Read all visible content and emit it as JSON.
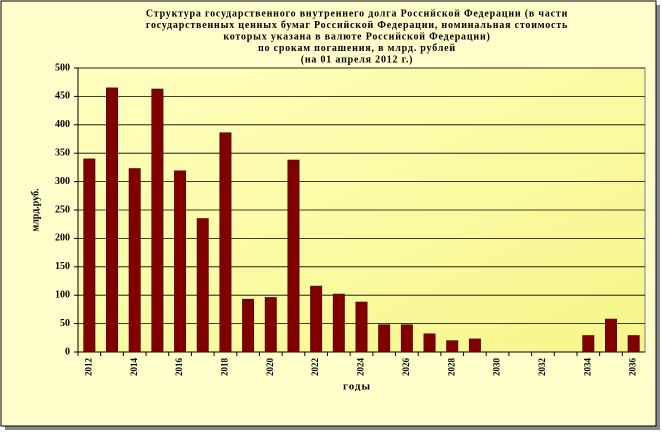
{
  "chart_data": {
    "type": "bar",
    "title": [
      "Структура государственного внутреннего долга Российской Федерации (в части",
      "государственных ценных бумаг Российской Федерации, номинальная стоимость",
      "которых указана в валюте Российской Федерации)",
      "по срокам погашения, в млрд. рублей",
      "(на 01 апреля 2012 г.)"
    ],
    "x_label": "годы",
    "y_label": "млрд.руб.",
    "categories": [
      "2012",
      null,
      "2014",
      null,
      "2016",
      null,
      "2018",
      null,
      "2020",
      null,
      "2022",
      null,
      "2024",
      null,
      "2026",
      null,
      "2028",
      null,
      "2030",
      null,
      "2032",
      null,
      "2034",
      null,
      "2036"
    ],
    "values": [
      340,
      465,
      323,
      463,
      319,
      235,
      386,
      93,
      96,
      338,
      116,
      102,
      88,
      48,
      48,
      32,
      20,
      23,
      0,
      0,
      0,
      0,
      29,
      58,
      29
    ],
    "color": "#800000",
    "ylim": [
      0,
      500
    ],
    "yticks": [
      0,
      50,
      100,
      150,
      200,
      250,
      300,
      350,
      400,
      450,
      500
    ],
    "grid": true
  }
}
